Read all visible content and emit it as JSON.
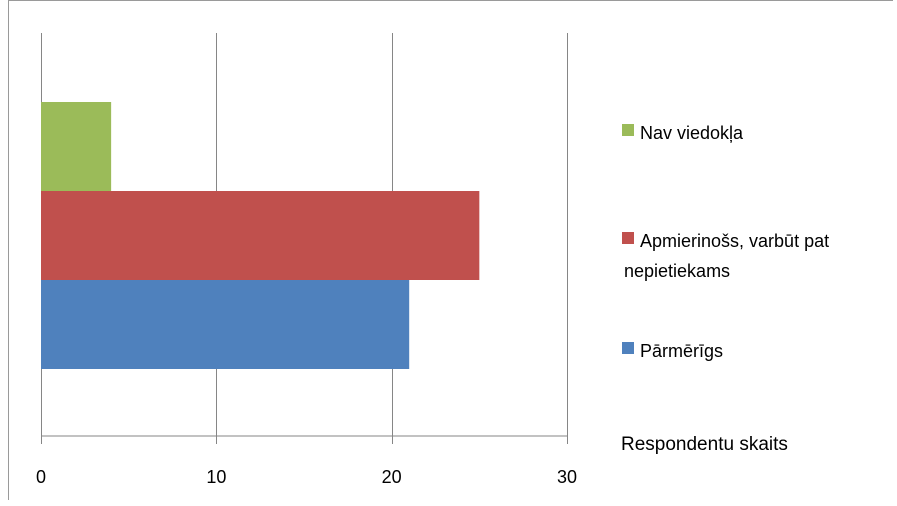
{
  "chart_data": {
    "type": "bar",
    "orientation": "horizontal",
    "title": "",
    "xlabel": "Respondentu skaits",
    "ylabel": "",
    "xlim": [
      0,
      30
    ],
    "x_ticks": [
      0,
      10,
      20,
      30
    ],
    "grid": "vertical",
    "legend_position": "right",
    "series": [
      {
        "name": "Pārmērīgs",
        "value": 21,
        "color": "#4f81bd"
      },
      {
        "name": "Apmierinošs, varbūt pat nepietiekams",
        "value": 25,
        "color": "#c0504d"
      },
      {
        "name": "Nav viedokļa",
        "value": 4,
        "color": "#9bbb59"
      }
    ]
  }
}
